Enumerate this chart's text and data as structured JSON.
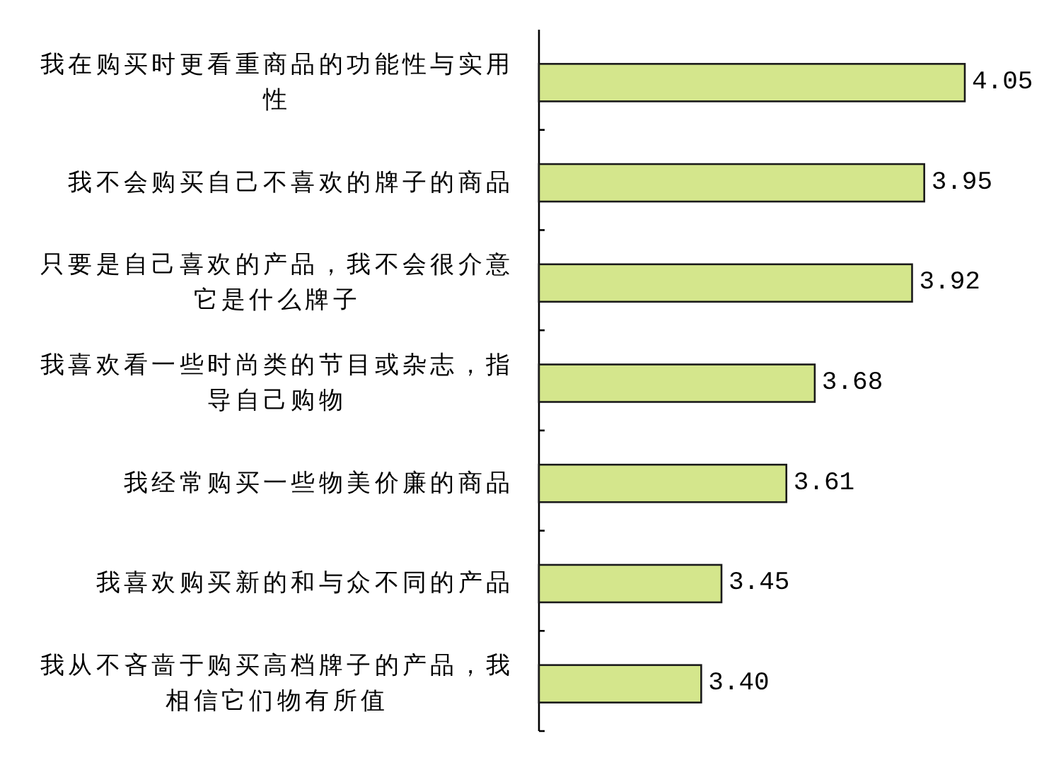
{
  "chart_data": {
    "type": "bar",
    "orientation": "horizontal",
    "categories": [
      "我在购买时更看重商品的功能性与实用性",
      "我不会购买自己不喜欢的牌子的商品",
      "只要是自己喜欢的产品，我不会很介意它是什么牌子",
      "我喜欢看一些时尚类的节目或杂志，指导自己购物",
      "我经常购买一些物美价廉的商品",
      "我喜欢购买新的和与众不同的产品",
      "我从不吝啬于购买高档牌子的产品，我相信它们物有所值"
    ],
    "values": [
      4.05,
      3.95,
      3.92,
      3.68,
      3.61,
      3.45,
      3.4
    ],
    "value_labels": [
      "4.05",
      "3.95",
      "3.92",
      "3.68",
      "3.61",
      "3.45",
      "3.40"
    ],
    "color": "#d4e68c",
    "xlim": [
      3,
      4.05
    ],
    "tick_labels": "y"
  }
}
